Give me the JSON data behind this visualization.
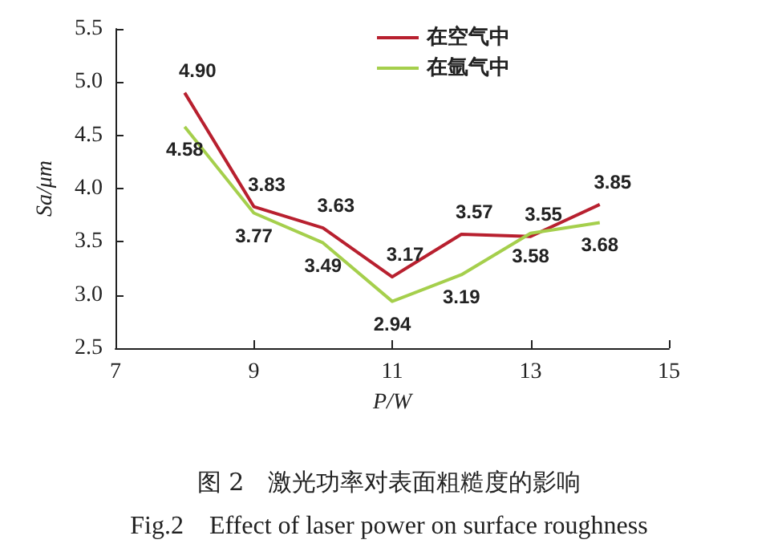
{
  "chart_data": {
    "type": "line",
    "title": "图 2　激光功率对表面粗糙度的影响",
    "subtitle": "Fig.2　Effect of laser power on surface roughness",
    "xlabel": "P/W",
    "ylabel": "Sa/μm",
    "x": [
      8,
      9,
      10,
      11,
      12,
      13,
      14
    ],
    "series": [
      {
        "name": "在空气中",
        "color": "#b8202f",
        "values": [
          4.9,
          3.83,
          3.63,
          3.17,
          3.57,
          3.55,
          3.85
        ],
        "value_labels": [
          "4.90",
          "3.83",
          "3.63",
          "3.17",
          "3.57",
          "3.55",
          "3.85"
        ]
      },
      {
        "name": "在氩气中",
        "color": "#a5cf4c",
        "values": [
          4.58,
          3.77,
          3.49,
          2.94,
          3.19,
          3.58,
          3.68
        ],
        "value_labels": [
          "4.58",
          "3.77",
          "3.49",
          "2.94",
          "3.19",
          "3.58",
          "3.68"
        ]
      }
    ],
    "xlim": [
      7,
      15
    ],
    "xticks": [
      7,
      9,
      11,
      13,
      15
    ],
    "ylim": [
      2.5,
      5.5
    ],
    "yticks": [
      2.5,
      {
        "value": 3,
        "label": "3.0"
      },
      3.5,
      {
        "value": 4,
        "label": "4.0"
      },
      4.5,
      {
        "value": 5,
        "label": "5.0"
      },
      5.5
    ],
    "legend": "top",
    "grid": false,
    "marker": "none",
    "line_style": "solid"
  }
}
